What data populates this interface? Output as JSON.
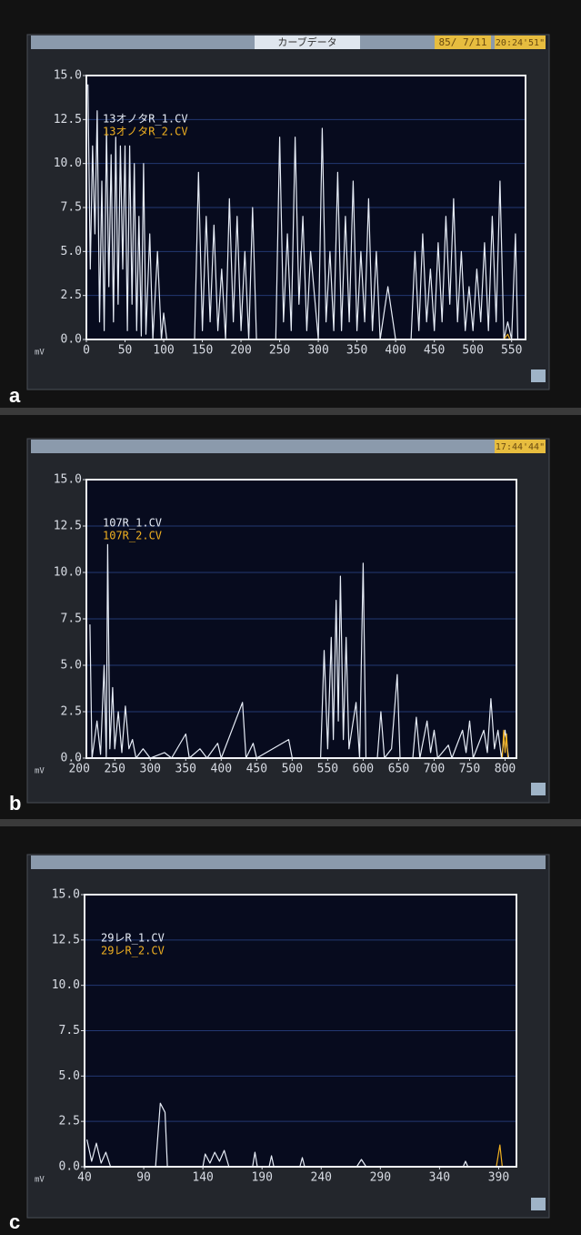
{
  "chart_data": [
    {
      "type": "line",
      "panel_label": "a",
      "header_title": "カーブデータ",
      "header_date": "85/ 7/11",
      "header_time": "20:24'51\"",
      "y_unit": "mV",
      "xlim": [
        0,
        568
      ],
      "xticks": [
        0,
        50,
        100,
        150,
        200,
        250,
        300,
        350,
        400,
        450,
        500,
        550
      ],
      "ylim": [
        0,
        15
      ],
      "yticks": [
        {
          "value": 0,
          "label": "0.0"
        },
        2.5,
        {
          "value": 5,
          "label": "5.0"
        },
        7.5,
        {
          "value": 10,
          "label": "10.0"
        },
        12.5,
        {
          "value": 15,
          "label": "15.0"
        }
      ],
      "grid": true,
      "series": [
        {
          "name": "13オノタR_1.CV",
          "color": "#e6ecf6",
          "x": [
            2,
            5,
            8,
            11,
            14,
            17,
            20,
            23,
            26,
            29,
            32,
            35,
            38,
            41,
            44,
            47,
            50,
            53,
            56,
            59,
            62,
            65,
            68,
            71,
            74,
            77,
            82,
            86,
            92,
            97,
            100,
            104,
            140,
            145,
            150,
            155,
            160,
            165,
            170,
            175,
            180,
            185,
            190,
            195,
            200,
            205,
            210,
            215,
            220,
            245,
            250,
            255,
            260,
            265,
            270,
            275,
            280,
            285,
            290,
            300,
            305,
            310,
            315,
            320,
            325,
            330,
            335,
            340,
            345,
            350,
            355,
            360,
            365,
            370,
            375,
            380,
            390,
            400,
            420,
            425,
            430,
            435,
            440,
            445,
            450,
            455,
            460,
            465,
            470,
            475,
            480,
            485,
            490,
            495,
            500,
            505,
            510,
            515,
            520,
            525,
            530,
            535,
            540,
            545,
            550,
            555,
            558
          ],
          "values": [
            14.5,
            4,
            11,
            6,
            13,
            1,
            9,
            0.5,
            12,
            3,
            10.5,
            1,
            11.5,
            2,
            11,
            4,
            11,
            0.5,
            11,
            2,
            10,
            0.5,
            7,
            0.2,
            10,
            0.3,
            6,
            0,
            5,
            0,
            1.5,
            0,
            0,
            9.5,
            0.5,
            7,
            1,
            6.5,
            0.5,
            4,
            0,
            8,
            1,
            7,
            0.5,
            5,
            0,
            7.5,
            0,
            0,
            11.5,
            1,
            6,
            0.5,
            11.5,
            2,
            7,
            0.5,
            5,
            0,
            12,
            1,
            5,
            0.5,
            9.5,
            0.5,
            7,
            1,
            9,
            0.5,
            5,
            1,
            8,
            0.5,
            5,
            0,
            3,
            0,
            0,
            5,
            0.5,
            6,
            1,
            4,
            0.5,
            5.5,
            1,
            7,
            2,
            8,
            1,
            5,
            0.5,
            3,
            0.5,
            4,
            1,
            5.5,
            0.5,
            7,
            1,
            9,
            0,
            1,
            0,
            6,
            0
          ]
        },
        {
          "name": "13オノタR_2.CV",
          "color": "#f0b020",
          "x": [
            540,
            545,
            548
          ],
          "values": [
            0,
            0.3,
            0
          ]
        }
      ]
    },
    {
      "type": "line",
      "panel_label": "b",
      "header_time": "17:44'44\"",
      "y_unit": "mV",
      "xlim": [
        210,
        816
      ],
      "xticks": [
        200,
        250,
        300,
        350,
        400,
        450,
        500,
        550,
        600,
        650,
        700,
        750,
        800
      ],
      "ylim": [
        0,
        15
      ],
      "yticks": [
        {
          "value": 0,
          "label": "0.0"
        },
        2.5,
        {
          "value": 5,
          "label": "5.0"
        },
        7.5,
        {
          "value": 10,
          "label": "10.0"
        },
        12.5,
        {
          "value": 15,
          "label": "15.0"
        }
      ],
      "grid": true,
      "series": [
        {
          "name": "107R_1.CV",
          "color": "#e6ecf6",
          "x": [
            215,
            218,
            225,
            230,
            235,
            238,
            240,
            243,
            247,
            250,
            255,
            260,
            265,
            270,
            275,
            280,
            290,
            300,
            320,
            330,
            350,
            355,
            370,
            380,
            395,
            400,
            430,
            435,
            445,
            450,
            495,
            500,
            540,
            545,
            550,
            555,
            558,
            562,
            565,
            568,
            572,
            576,
            580,
            590,
            595,
            600,
            604,
            620,
            625,
            630,
            640,
            648,
            652,
            670,
            675,
            680,
            690,
            695,
            700,
            705,
            720,
            725,
            740,
            745,
            750,
            755,
            770,
            775,
            780,
            785,
            790,
            795,
            800,
            805
          ],
          "values": [
            7.2,
            0,
            2,
            0.2,
            5,
            0,
            11.5,
            0.5,
            3.8,
            0.5,
            2.5,
            0.3,
            2.8,
            0.5,
            1,
            0,
            0.5,
            0,
            0.3,
            0,
            1.3,
            0,
            0.5,
            0,
            0.8,
            0,
            3,
            0,
            0.8,
            0,
            1,
            0,
            0,
            5.8,
            0.5,
            6.5,
            1,
            8.5,
            2,
            9.8,
            1,
            6.5,
            0.5,
            3,
            0,
            10.5,
            0,
            0,
            2.5,
            0,
            0.5,
            4.5,
            0,
            0,
            2.2,
            0,
            2,
            0.3,
            1.5,
            0,
            0.7,
            0,
            1.5,
            0.3,
            2,
            0,
            1.5,
            0.3,
            3.2,
            0.5,
            1.5,
            0,
            1.5,
            0
          ]
        },
        {
          "name": "107R_2.CV",
          "color": "#f0b020",
          "x": [
            796,
            798,
            800,
            802,
            804
          ],
          "values": [
            0,
            1.5,
            0.3,
            1.3,
            0
          ]
        }
      ]
    },
    {
      "type": "line",
      "panel_label": "c",
      "y_unit": "mV",
      "xlim": [
        40,
        405
      ],
      "xticks": [
        40,
        90,
        140,
        190,
        240,
        290,
        340,
        390
      ],
      "ylim": [
        0,
        15
      ],
      "yticks": [
        {
          "value": 0,
          "label": "0.0"
        },
        2.5,
        {
          "value": 5,
          "label": "5.0"
        },
        7.5,
        {
          "value": 10,
          "label": "10.0"
        },
        12.5,
        {
          "value": 15,
          "label": "15.0"
        }
      ],
      "grid": true,
      "series": [
        {
          "name": "29レR_1.CV",
          "color": "#e6ecf6",
          "x": [
            42,
            46,
            50,
            54,
            58,
            62,
            100,
            104,
            108,
            110,
            140,
            142,
            146,
            150,
            154,
            158,
            162,
            182,
            184,
            186,
            196,
            198,
            200,
            222,
            224,
            226,
            270,
            274,
            278,
            360,
            362,
            364
          ],
          "values": [
            1.5,
            0.3,
            1.3,
            0.2,
            0.8,
            0,
            0,
            3.5,
            3,
            0,
            0,
            0.7,
            0.2,
            0.8,
            0.3,
            0.9,
            0,
            0,
            0.8,
            0,
            0,
            0.6,
            0,
            0,
            0.5,
            0,
            0,
            0.4,
            0,
            0,
            0.3,
            0
          ]
        },
        {
          "name": "29レR_2.CV",
          "color": "#f0b020",
          "x": [
            388,
            391,
            393
          ],
          "values": [
            0,
            1.2,
            0
          ]
        }
      ]
    }
  ]
}
